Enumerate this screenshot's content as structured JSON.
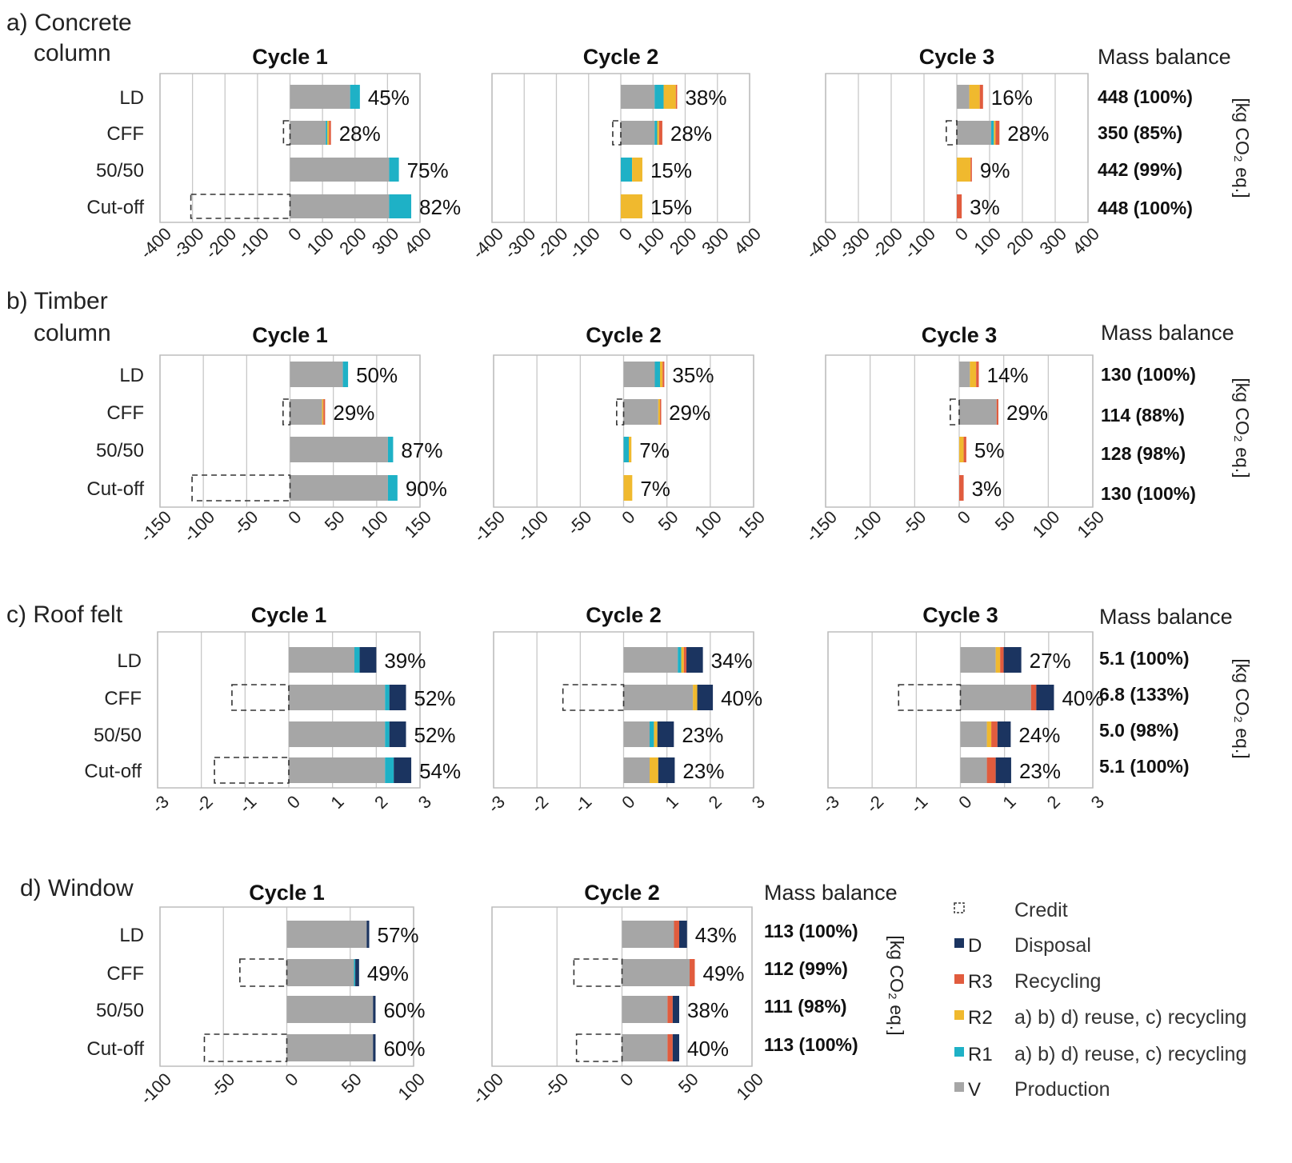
{
  "colors": {
    "V": "#a6a6a6",
    "R1": "#1eb1c6",
    "R2": "#f0b92e",
    "R3": "#e15c3e",
    "D": "#1b3460",
    "frame": "#bdbdbd",
    "grid": "#c8c8c8",
    "credit": "#333333"
  },
  "legend": [
    {
      "code": "",
      "desc": "Credit",
      "type": "credit"
    },
    {
      "code": "D",
      "desc": "Disposal",
      "color_key": "D"
    },
    {
      "code": "R3",
      "desc": "Recycling",
      "color_key": "R3"
    },
    {
      "code": "R2",
      "desc": "a) b) d) reuse, c) recycling",
      "color_key": "R2"
    },
    {
      "code": "R1",
      "desc": "a) b) d) reuse, c) recycling",
      "color_key": "R1"
    },
    {
      "code": "V",
      "desc": "Production",
      "color_key": "V"
    }
  ],
  "chart_data": [
    {
      "type": "bar",
      "orientation": "horizontal-stacked",
      "section_label": "a) Concrete column",
      "title_lines": [
        "a) Concrete",
        "column"
      ],
      "categories": [
        "LD",
        "CFF",
        "50/50",
        "Cut-off"
      ],
      "xlim": [
        -400,
        400
      ],
      "xticks": [
        "-400",
        "-300",
        "-200",
        "-100",
        "0",
        "100",
        "200",
        "300",
        "400"
      ],
      "mass_balance_title": "Mass balance",
      "mass_balance": [
        "448 (100%)",
        "350 (85%)",
        "442 (99%)",
        "448 (100%)"
      ],
      "unit_label": "[kg CO₂ eq.]",
      "cycles": [
        {
          "title": "Cycle 1",
          "rows": [
            {
              "segments": [
                [
                  "V",
                  185
                ],
                [
                  "R1",
                  30
                ]
              ],
              "credit": 0,
              "label": "45%"
            },
            {
              "segments": [
                [
                  "V",
                  110
                ],
                [
                  "R1",
                  5
                ],
                [
                  "R2",
                  5
                ],
                [
                  "R3",
                  6
                ]
              ],
              "credit": -20,
              "label": "28%"
            },
            {
              "segments": [
                [
                  "V",
                  305
                ],
                [
                  "R1",
                  30
                ]
              ],
              "credit": 0,
              "label": "75%"
            },
            {
              "segments": [
                [
                  "V",
                  305
                ],
                [
                  "R1",
                  68
                ]
              ],
              "credit": -305,
              "label": "82%"
            }
          ]
        },
        {
          "title": "Cycle 2",
          "rows": [
            {
              "segments": [
                [
                  "V",
                  105
                ],
                [
                  "R1",
                  28
                ],
                [
                  "R2",
                  38
                ],
                [
                  "R3",
                  4
                ]
              ],
              "credit": 0,
              "label": "38%"
            },
            {
              "segments": [
                [
                  "V",
                  105
                ],
                [
                  "R1",
                  8
                ],
                [
                  "R2",
                  6
                ],
                [
                  "R3",
                  10
                ]
              ],
              "credit": -25,
              "label": "28%"
            },
            {
              "segments": [
                [
                  "R1",
                  35
                ],
                [
                  "R2",
                  32
                ]
              ],
              "credit": 0,
              "label": "15%"
            },
            {
              "segments": [
                [
                  "R2",
                  67
                ]
              ],
              "credit": 0,
              "label": "15%"
            }
          ]
        },
        {
          "title": "Cycle 3",
          "rows": [
            {
              "segments": [
                [
                  "V",
                  38
                ],
                [
                  "R2",
                  32
                ],
                [
                  "R3",
                  10
                ]
              ],
              "credit": 0,
              "label": "16%"
            },
            {
              "segments": [
                [
                  "V",
                  105
                ],
                [
                  "R1",
                  8
                ],
                [
                  "R2",
                  5
                ],
                [
                  "R3",
                  12
                ]
              ],
              "credit": -32,
              "label": "28%"
            },
            {
              "segments": [
                [
                  "R2",
                  42
                ],
                [
                  "R3",
                  4
                ]
              ],
              "credit": 0,
              "label": "9%"
            },
            {
              "segments": [
                [
                  "R3",
                  15
                ]
              ],
              "credit": 0,
              "label": "3%"
            }
          ]
        }
      ]
    },
    {
      "type": "bar",
      "orientation": "horizontal-stacked",
      "section_label": "b) Timber column",
      "title_lines": [
        "b) Timber",
        "column"
      ],
      "categories": [
        "LD",
        "CFF",
        "50/50",
        "Cut-off"
      ],
      "xlim": [
        -150,
        150
      ],
      "xticks": [
        "-150",
        "-100",
        "-50",
        "0",
        "50",
        "100",
        "150"
      ],
      "mass_balance_title": "Mass balance",
      "mass_balance": [
        "130 (100%)",
        "114 (88%)",
        "128 (98%)",
        "130 (100%)"
      ],
      "unit_label": "[kg CO₂ eq.]",
      "cycles": [
        {
          "title": "Cycle 1",
          "rows": [
            {
              "segments": [
                [
                  "V",
                  61
                ],
                [
                  "R1",
                  6
                ]
              ],
              "credit": 0,
              "label": "50%"
            },
            {
              "segments": [
                [
                  "V",
                  37
                ],
                [
                  "R2",
                  1.5
                ],
                [
                  "R3",
                  2
                ]
              ],
              "credit": -8,
              "label": "29%"
            },
            {
              "segments": [
                [
                  "V",
                  113
                ],
                [
                  "R1",
                  6
                ]
              ],
              "credit": 0,
              "label": "87%"
            },
            {
              "segments": [
                [
                  "V",
                  113
                ],
                [
                  "R1",
                  11
                ]
              ],
              "credit": -113,
              "label": "90%"
            }
          ]
        },
        {
          "title": "Cycle 2",
          "rows": [
            {
              "segments": [
                [
                  "V",
                  36
                ],
                [
                  "R1",
                  6
                ],
                [
                  "R2",
                  3
                ],
                [
                  "R3",
                  2
                ]
              ],
              "credit": 0,
              "label": "35%"
            },
            {
              "segments": [
                [
                  "V",
                  40
                ],
                [
                  "R2",
                  2
                ],
                [
                  "R3",
                  1
                ]
              ],
              "credit": -8,
              "label": "29%"
            },
            {
              "segments": [
                [
                  "R1",
                  6
                ],
                [
                  "R2",
                  3
                ]
              ],
              "credit": 0,
              "label": "7%"
            },
            {
              "segments": [
                [
                  "R2",
                  10
                ]
              ],
              "credit": 0,
              "label": "7%"
            }
          ]
        },
        {
          "title": "Cycle 3",
          "rows": [
            {
              "segments": [
                [
                  "V",
                  12
                ],
                [
                  "R2",
                  7
                ],
                [
                  "R3",
                  3
                ]
              ],
              "credit": 0,
              "label": "14%"
            },
            {
              "segments": [
                [
                  "V",
                  42
                ],
                [
                  "R3",
                  2
                ]
              ],
              "credit": -10,
              "label": "29%"
            },
            {
              "segments": [
                [
                  "R2",
                  5
                ],
                [
                  "R3",
                  3
                ]
              ],
              "credit": 0,
              "label": "5%"
            },
            {
              "segments": [
                [
                  "R3",
                  5
                ]
              ],
              "credit": 0,
              "label": "3%"
            }
          ]
        }
      ]
    },
    {
      "type": "bar",
      "orientation": "horizontal-stacked",
      "section_label": "c) Roof felt",
      "title_lines": [
        "c) Roof felt"
      ],
      "categories": [
        "LD",
        "CFF",
        "50/50",
        "Cut-off"
      ],
      "xlim": [
        -3,
        3
      ],
      "xticks": [
        "-3",
        "-2",
        "-1",
        "0",
        "1",
        "2",
        "3"
      ],
      "mass_balance_title": "Mass balance",
      "mass_balance": [
        "5.1 (100%)",
        "6.8 (133%)",
        "5.0 (98%)",
        "5.1 (100%)"
      ],
      "unit_label": "[kg CO₂ eq.]",
      "cycles": [
        {
          "title": "Cycle 1",
          "rows": [
            {
              "segments": [
                [
                  "V",
                  1.5
                ],
                [
                  "R1",
                  0.12
                ],
                [
                  "D",
                  0.38
                ]
              ],
              "credit": 0,
              "label": "39%"
            },
            {
              "segments": [
                [
                  "V",
                  2.2
                ],
                [
                  "R1",
                  0.1
                ],
                [
                  "D",
                  0.38
                ]
              ],
              "credit": -1.3,
              "label": "52%"
            },
            {
              "segments": [
                [
                  "V",
                  2.2
                ],
                [
                  "R1",
                  0.1
                ],
                [
                  "D",
                  0.38
                ]
              ],
              "credit": 0,
              "label": "52%"
            },
            {
              "segments": [
                [
                  "V",
                  2.2
                ],
                [
                  "R1",
                  0.2
                ],
                [
                  "D",
                  0.4
                ]
              ],
              "credit": -1.7,
              "label": "54%"
            }
          ]
        },
        {
          "title": "Cycle 2",
          "rows": [
            {
              "segments": [
                [
                  "V",
                  1.25
                ],
                [
                  "R1",
                  0.08
                ],
                [
                  "R2",
                  0.06
                ],
                [
                  "R3",
                  0.06
                ],
                [
                  "D",
                  0.38
                ]
              ],
              "credit": 0,
              "label": "34%"
            },
            {
              "segments": [
                [
                  "V",
                  1.6
                ],
                [
                  "R2",
                  0.1
                ],
                [
                  "D",
                  0.36
                ]
              ],
              "credit": -1.4,
              "label": "40%"
            },
            {
              "segments": [
                [
                  "V",
                  0.6
                ],
                [
                  "R1",
                  0.1
                ],
                [
                  "R2",
                  0.08
                ],
                [
                  "D",
                  0.38
                ]
              ],
              "credit": 0,
              "label": "23%"
            },
            {
              "segments": [
                [
                  "V",
                  0.6
                ],
                [
                  "R2",
                  0.2
                ],
                [
                  "D",
                  0.38
                ]
              ],
              "credit": 0,
              "label": "23%"
            }
          ]
        },
        {
          "title": "Cycle 3",
          "rows": [
            {
              "segments": [
                [
                  "V",
                  0.8
                ],
                [
                  "R2",
                  0.1
                ],
                [
                  "R3",
                  0.08
                ],
                [
                  "D",
                  0.4
                ]
              ],
              "credit": 0,
              "label": "27%"
            },
            {
              "segments": [
                [
                  "V",
                  1.6
                ],
                [
                  "R3",
                  0.12
                ],
                [
                  "D",
                  0.4
                ]
              ],
              "credit": -1.4,
              "label": "40%"
            },
            {
              "segments": [
                [
                  "V",
                  0.6
                ],
                [
                  "R2",
                  0.1
                ],
                [
                  "R3",
                  0.14
                ],
                [
                  "D",
                  0.3
                ]
              ],
              "credit": 0,
              "label": "24%"
            },
            {
              "segments": [
                [
                  "V",
                  0.6
                ],
                [
                  "R3",
                  0.2
                ],
                [
                  "D",
                  0.35
                ]
              ],
              "credit": 0,
              "label": "23%"
            }
          ]
        }
      ]
    },
    {
      "type": "bar",
      "orientation": "horizontal-stacked",
      "section_label": "d) Window",
      "title_lines": [
        "d) Window"
      ],
      "categories": [
        "LD",
        "CFF",
        "50/50",
        "Cut-off"
      ],
      "xlim": [
        -100,
        100
      ],
      "xticks": [
        "-100",
        "-50",
        "0",
        "50",
        "100"
      ],
      "mass_balance_title": "Mass balance",
      "mass_balance": [
        "113 (100%)",
        "112 (99%)",
        "111 (98%)",
        "113 (100%)"
      ],
      "unit_label": "[kg CO₂ eq.]",
      "cycles": [
        {
          "title": "Cycle 1",
          "rows": [
            {
              "segments": [
                [
                  "V",
                  63
                ],
                [
                  "D",
                  2
                ]
              ],
              "credit": 0,
              "label": "57%"
            },
            {
              "segments": [
                [
                  "V",
                  53
                ],
                [
                  "R1",
                  1
                ],
                [
                  "D",
                  3
                ]
              ],
              "credit": -37,
              "label": "49%"
            },
            {
              "segments": [
                [
                  "V",
                  68
                ],
                [
                  "D",
                  2
                ]
              ],
              "credit": 0,
              "label": "60%"
            },
            {
              "segments": [
                [
                  "V",
                  68
                ],
                [
                  "D",
                  2
                ]
              ],
              "credit": -65,
              "label": "60%"
            }
          ]
        },
        {
          "title": "Cycle 2",
          "rows": [
            {
              "segments": [
                [
                  "V",
                  40
                ],
                [
                  "R3",
                  4
                ],
                [
                  "D",
                  6
                ]
              ],
              "credit": 0,
              "label": "43%"
            },
            {
              "segments": [
                [
                  "V",
                  52
                ],
                [
                  "R3",
                  4
                ]
              ],
              "credit": -37,
              "label": "49%"
            },
            {
              "segments": [
                [
                  "V",
                  35
                ],
                [
                  "R3",
                  4
                ],
                [
                  "D",
                  5
                ]
              ],
              "credit": 0,
              "label": "38%"
            },
            {
              "segments": [
                [
                  "V",
                  35
                ],
                [
                  "R3",
                  4
                ],
                [
                  "D",
                  5
                ]
              ],
              "credit": -35,
              "label": "40%"
            }
          ]
        }
      ]
    }
  ]
}
